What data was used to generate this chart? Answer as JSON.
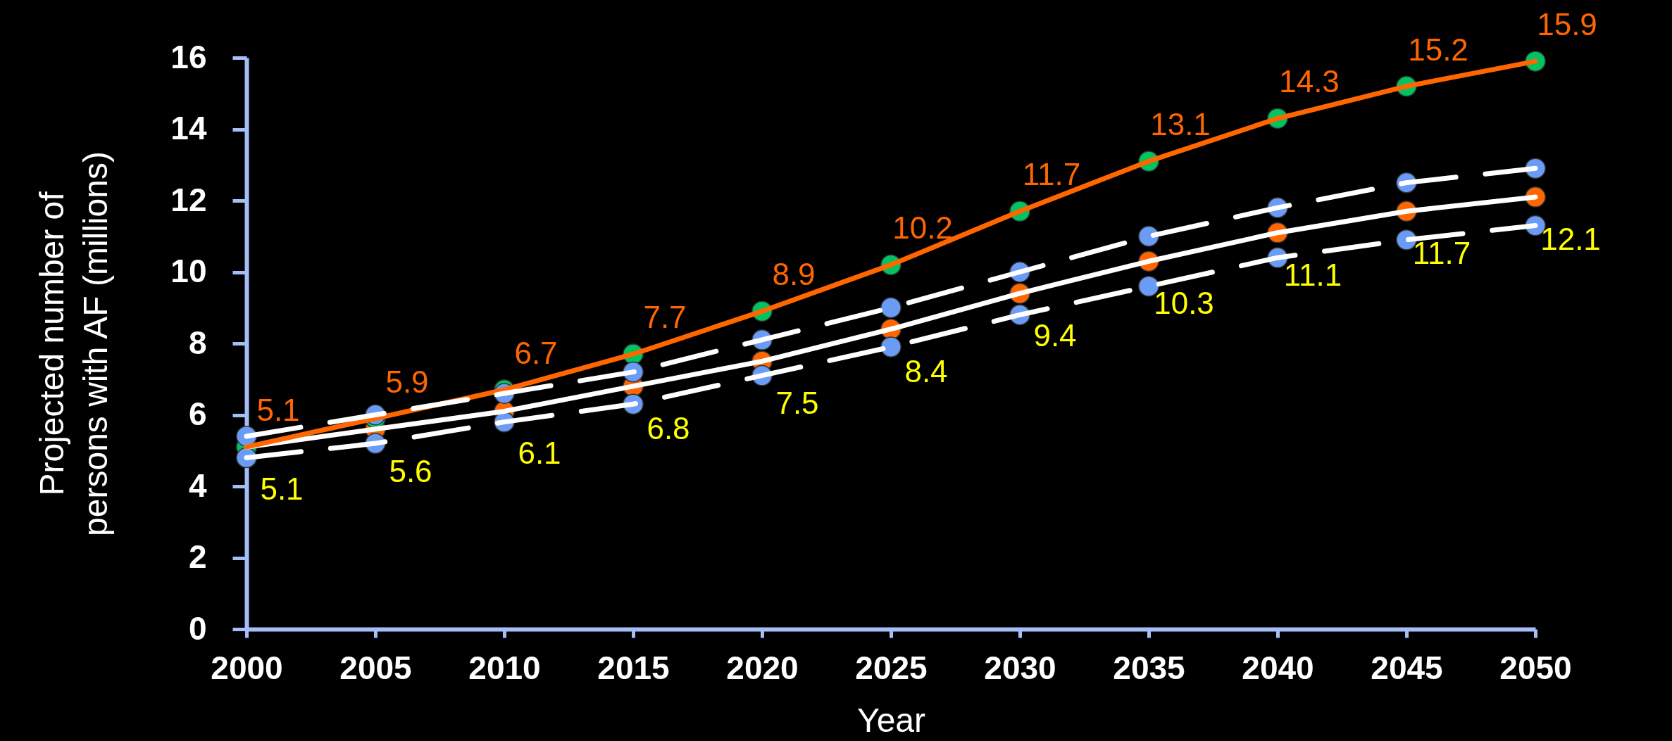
{
  "chart_data": {
    "type": "line",
    "xlabel": "Year",
    "ylabel": "Projected number of\npersons with AF (millions)",
    "x": [
      2000,
      2005,
      2010,
      2015,
      2020,
      2025,
      2030,
      2035,
      2040,
      2045,
      2050
    ],
    "xlim": [
      2000,
      2050
    ],
    "xticks": [
      2000,
      2005,
      2010,
      2015,
      2020,
      2025,
      2030,
      2035,
      2040,
      2045,
      2050
    ],
    "ylim": [
      0,
      16
    ],
    "yticks": [
      0,
      2,
      4,
      6,
      8,
      10,
      12,
      14,
      16
    ],
    "grid": false,
    "marker": "circle",
    "series": [
      {
        "color": "#ffffff",
        "line_style": "solid",
        "colors": [
          "#ff6600",
          "#ff6600",
          "#ff6600",
          "#ff6600",
          "#ff6600",
          "#ff6600",
          "#ff6600",
          "#ff6600",
          "#ff6600",
          "#ff6600",
          "#ff6600"
        ],
        "values": [
          5.1,
          5.6,
          6.1,
          6.8,
          7.5,
          8.4,
          9.4,
          10.3,
          11.1,
          11.7,
          12.1
        ],
        "value_labels": [
          "5.1",
          "5.6",
          "6.1",
          "6.8",
          "7.5",
          "8.4",
          "9.4",
          "10.3",
          "11.1",
          "11.7",
          "12.1"
        ]
      },
      {
        "color": "#ff6600",
        "line_style": "solid",
        "colors": [
          "#00c462",
          "#00c462",
          "#00c462",
          "#00c462",
          "#00c462",
          "#00c462",
          "#00c462",
          "#00c462",
          "#00c462",
          "#00c462",
          "#00c462"
        ],
        "values": [
          5.1,
          5.9,
          6.7,
          7.7,
          8.9,
          10.2,
          11.7,
          13.1,
          14.3,
          15.2,
          15.9
        ],
        "value_labels": [
          "5.1",
          "5.9",
          "6.7",
          "7.7",
          "8.9",
          "10.2",
          "11.7",
          "13.1",
          "14.3",
          "15.2",
          "15.9"
        ]
      },
      {
        "color": "#ffffff",
        "line_style": "dashed",
        "colors": [
          "#6a9cf5",
          "#6a9cf5",
          "#6a9cf5",
          "#6a9cf5",
          "#6a9cf5",
          "#6a9cf5",
          "#6a9cf5",
          "#6a9cf5",
          "#6a9cf5",
          "#6a9cf5",
          "#6a9cf5"
        ],
        "values": [
          5.4,
          6.0,
          6.6,
          7.2,
          8.1,
          9.0,
          10.0,
          11.0,
          11.8,
          12.5,
          12.9
        ]
      },
      {
        "color": "#ffffff",
        "line_style": "dashed",
        "colors": [
          "#6a9cf5",
          "#6a9cf5",
          "#6a9cf5",
          "#6a9cf5",
          "#6a9cf5",
          "#6a9cf5",
          "#6a9cf5",
          "#6a9cf5",
          "#6a9cf5",
          "#6a9cf5",
          "#6a9cf5"
        ],
        "values": [
          4.8,
          5.2,
          5.8,
          6.3,
          7.1,
          7.9,
          8.8,
          9.6,
          10.4,
          10.9,
          11.3
        ]
      }
    ]
  }
}
